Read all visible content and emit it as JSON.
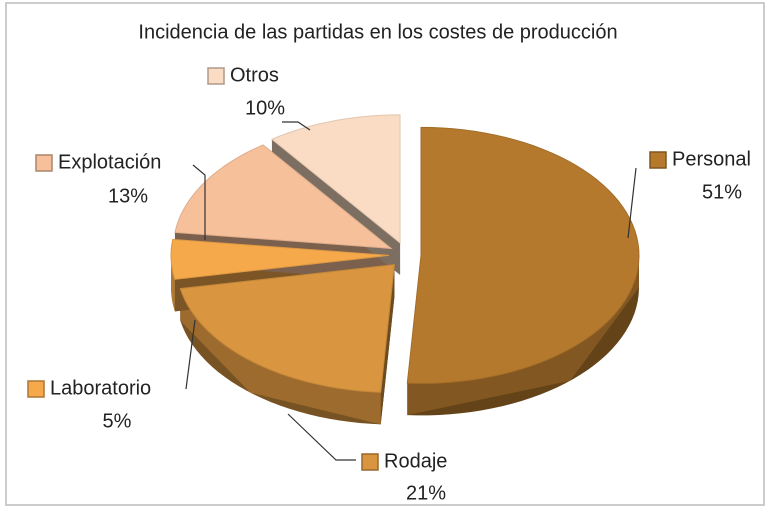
{
  "chart_data": {
    "type": "pie",
    "title": "Incidencia de las partidas en los costes de producción",
    "categories": [
      "Personal",
      "Rodaje",
      "Laboratorio",
      "Explotación",
      "Otros"
    ],
    "values": [
      51,
      21,
      5,
      13,
      10
    ],
    "value_labels": [
      "51%",
      "21%",
      "5%",
      "13%",
      "10%"
    ],
    "colors": [
      "#b5792e",
      "#d9953f",
      "#f5a94a",
      "#f5c09a",
      "#fadcc4"
    ]
  }
}
